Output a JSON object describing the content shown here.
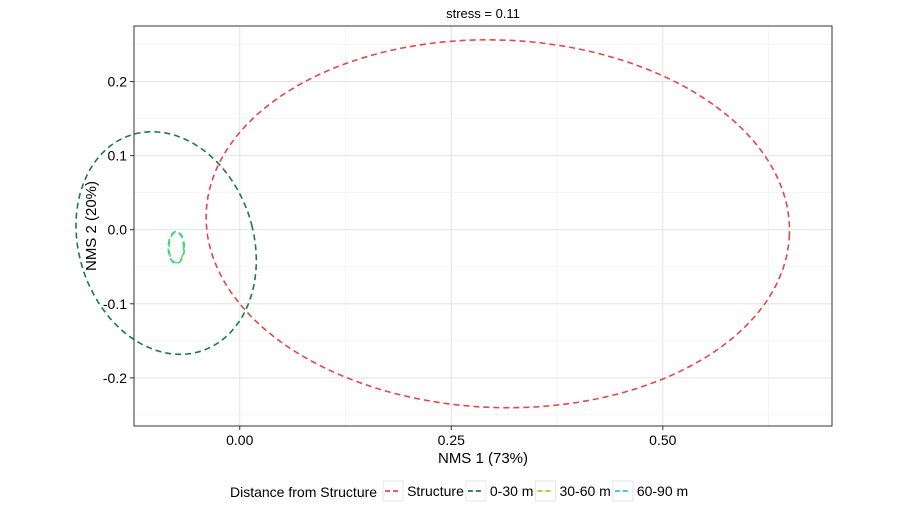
{
  "chart_data": {
    "type": "scatter",
    "title": "stress = 0.11",
    "xlabel": "NMS 1 (73%)",
    "ylabel": "NMS 2 (20%)",
    "xlim": [
      -0.125,
      0.7
    ],
    "ylim": [
      -0.265,
      0.275
    ],
    "x_ticks": [
      0.0,
      0.25,
      0.5
    ],
    "x_tick_labels": [
      "0.00",
      "0.25",
      "0.50"
    ],
    "y_ticks": [
      0.2,
      0.1,
      0.0,
      -0.1,
      -0.2
    ],
    "y_tick_labels": [
      "0.2",
      "0.1",
      "0.0",
      "-0.1",
      "-0.2"
    ],
    "grid": true,
    "legend_position": "bottom",
    "legend_title": "Distance from Structure",
    "series": [
      {
        "name": "Structure",
        "color": "#E0474C",
        "shape": "ellipse",
        "center": [
          0.305,
          0.008
        ],
        "semi_axes": [
          0.345,
          0.248
        ],
        "rotation_deg": -3
      },
      {
        "name": "0-30 m",
        "color": "#1A7A4A",
        "shape": "ellipse",
        "center": [
          -0.087,
          -0.018
        ],
        "semi_axes": [
          0.104,
          0.152
        ],
        "rotation_deg": 12
      },
      {
        "name": "30-60 m",
        "color": "#7FE01A",
        "shape": "ellipse",
        "center": [
          -0.075,
          -0.024
        ],
        "semi_axes": [
          0.0085,
          0.0205
        ],
        "rotation_deg": 0
      },
      {
        "name": "60-90 m",
        "color": "#1FD1C7",
        "shape": "ellipse",
        "center": [
          -0.075,
          -0.024
        ],
        "semi_axes": [
          0.0095,
          0.0215
        ],
        "rotation_deg": 0
      }
    ]
  }
}
